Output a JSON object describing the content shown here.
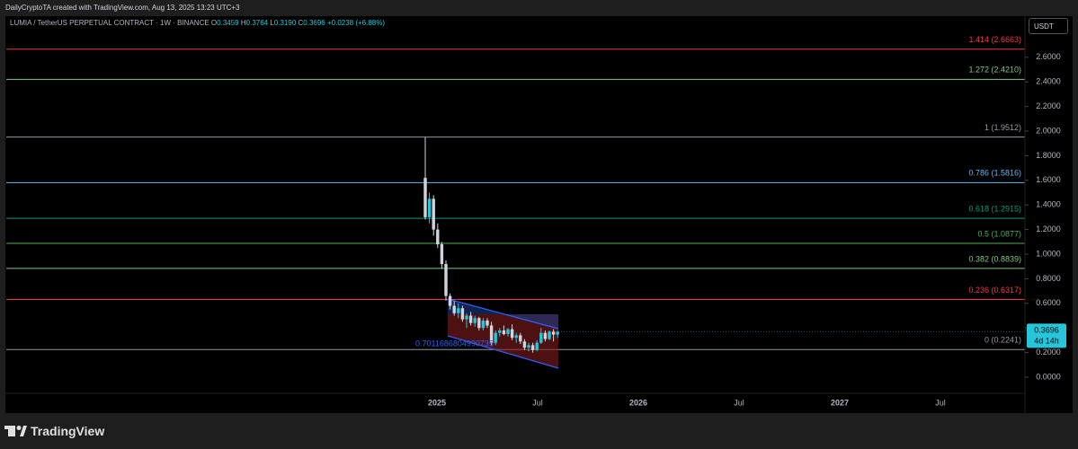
{
  "header": {
    "credit": "DailyCryptoTA created with TradingView.com, Aug 13, 2025 13:23 UTC+3",
    "symbol": "LUMIA / TetherUS PERPETUAL CONTRACT · 1W · BINANCE",
    "o_label": "O",
    "o": "0.3459",
    "h_label": "H",
    "h": "0.3764",
    "l_label": "L",
    "l": "0.3190",
    "c_label": "C",
    "c": "0.3696",
    "change": "+0.0238 (+6.88%)",
    "currency": "USDT",
    "brand": "TradingView"
  },
  "chart_data": {
    "type": "candlestick",
    "up_color": "#26c6da",
    "down_color": "#d1d4dc",
    "open": [
      1.62,
      1.3,
      1.45,
      1.2,
      1.08,
      0.92,
      0.66,
      0.58,
      0.52,
      0.56,
      0.47,
      0.5,
      0.44,
      0.48,
      0.4,
      0.46,
      0.42,
      0.28,
      0.36,
      0.38,
      0.35,
      0.39,
      0.32,
      0.34,
      0.29,
      0.24,
      0.26,
      0.22,
      0.28,
      0.36,
      0.31,
      0.37,
      0.3459
    ],
    "high": [
      1.95,
      1.5,
      1.48,
      1.25,
      1.1,
      0.95,
      0.68,
      0.62,
      0.6,
      0.58,
      0.52,
      0.53,
      0.5,
      0.49,
      0.48,
      0.48,
      0.45,
      0.38,
      0.4,
      0.42,
      0.4,
      0.43,
      0.36,
      0.36,
      0.31,
      0.28,
      0.28,
      0.3,
      0.4,
      0.38,
      0.38,
      0.39,
      0.3764
    ],
    "low": [
      1.28,
      1.25,
      1.15,
      1.05,
      0.88,
      0.62,
      0.55,
      0.5,
      0.48,
      0.45,
      0.4,
      0.42,
      0.41,
      0.38,
      0.38,
      0.4,
      0.26,
      0.26,
      0.33,
      0.34,
      0.33,
      0.3,
      0.28,
      0.27,
      0.22,
      0.21,
      0.2,
      0.21,
      0.27,
      0.29,
      0.3,
      0.29,
      0.319
    ],
    "close": [
      1.3,
      1.45,
      1.2,
      1.08,
      0.92,
      0.66,
      0.58,
      0.52,
      0.56,
      0.47,
      0.5,
      0.44,
      0.48,
      0.4,
      0.46,
      0.42,
      0.28,
      0.36,
      0.38,
      0.35,
      0.39,
      0.32,
      0.34,
      0.29,
      0.24,
      0.26,
      0.22,
      0.28,
      0.36,
      0.31,
      0.37,
      0.3459,
      0.3696
    ],
    "x_labels": [
      "2025",
      "Jul",
      "2026",
      "Jul",
      "2027",
      "Jul"
    ],
    "ylim": [
      -0.1,
      2.9
    ],
    "yticks": [
      {
        "value": 0,
        "label": "0.0000"
      },
      {
        "value": 0.2,
        "label": "0.2000"
      },
      {
        "value": 0.4,
        "label": "0.4000"
      },
      {
        "value": 0.6,
        "label": "0.6000"
      },
      {
        "value": 0.8,
        "label": "0.8000"
      },
      {
        "value": 1.0,
        "label": "1.0000"
      },
      {
        "value": 1.2,
        "label": "1.2000"
      },
      {
        "value": 1.4,
        "label": "1.4000"
      },
      {
        "value": 1.6,
        "label": "1.6000"
      },
      {
        "value": 1.8,
        "label": "1.8000"
      },
      {
        "value": 2.0,
        "label": "2.0000"
      },
      {
        "value": 2.2,
        "label": "2.2000"
      },
      {
        "value": 2.4,
        "label": "2.4000"
      },
      {
        "value": 2.6,
        "label": "2.6000"
      }
    ],
    "fib_levels": [
      {
        "label": "1.414 (2.6663)",
        "value": 2.6663,
        "color": "#f23645"
      },
      {
        "label": "1.272 (2.4210)",
        "value": 2.421,
        "color": "#81c784"
      },
      {
        "label": "1 (1.9512)",
        "value": 1.9512,
        "color": "#9598a1"
      },
      {
        "label": "0.786 (1.5816)",
        "value": 1.5816,
        "color": "#64b5f6"
      },
      {
        "label": "0.618 (1.2915)",
        "value": 1.2915,
        "color": "#089981"
      },
      {
        "label": "0.5 (1.0877)",
        "value": 1.0877,
        "color": "#4caf50"
      },
      {
        "label": "0.382 (0.8839)",
        "value": 0.8839,
        "color": "#81c784"
      },
      {
        "label": "0.236 (0.6317)",
        "value": 0.6317,
        "color": "#f23645"
      },
      {
        "label": "0 (0.2241)",
        "value": 0.2241,
        "color": "#9598a1"
      }
    ],
    "last_price": {
      "value": 0.3696,
      "label": "0.3696"
    },
    "countdown": "4d 14h",
    "channel_note": "0.7011686804990735"
  }
}
